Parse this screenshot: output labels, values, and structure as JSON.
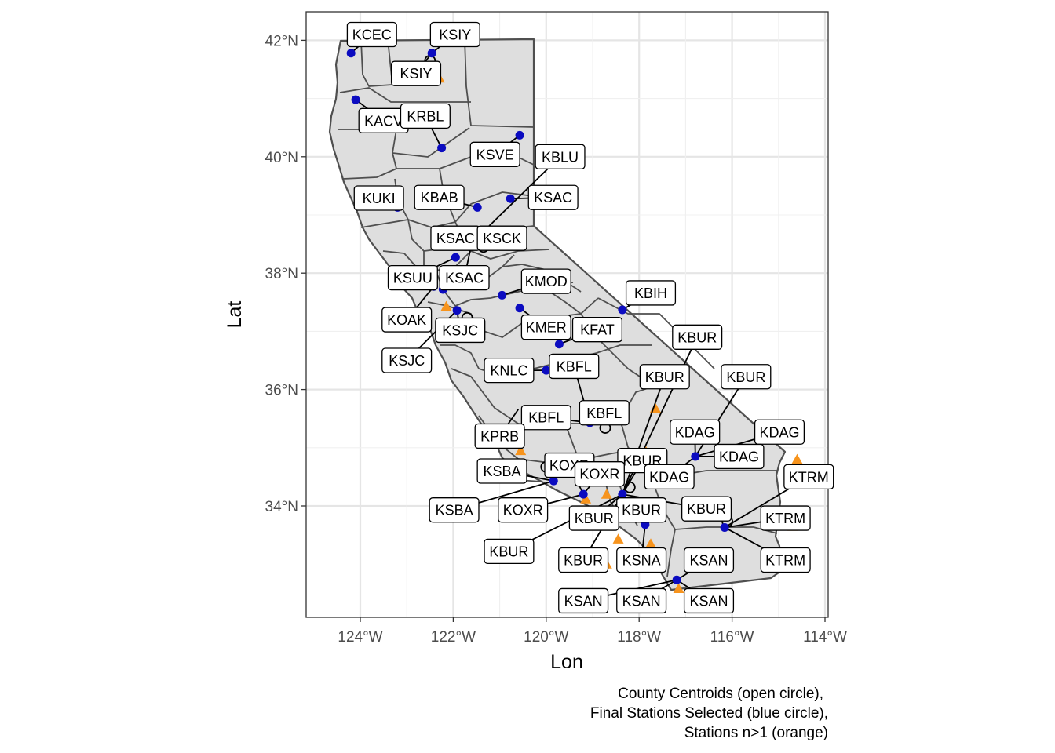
{
  "map": {
    "x_axis_title": "Lon",
    "y_axis_title": "Lat",
    "x_ticks": [
      {
        "value": -124,
        "label": "124°W"
      },
      {
        "value": -122,
        "label": "122°W"
      },
      {
        "value": -120,
        "label": "120°W"
      },
      {
        "value": -118,
        "label": "118°W"
      },
      {
        "value": -116,
        "label": "116°W"
      },
      {
        "value": -114,
        "label": "114°W"
      }
    ],
    "y_ticks": [
      {
        "value": 34,
        "label": "34°N"
      },
      {
        "value": 36,
        "label": "36°N"
      },
      {
        "value": 38,
        "label": "38°N"
      },
      {
        "value": 40,
        "label": "40°N"
      },
      {
        "value": 42,
        "label": "42°N"
      }
    ],
    "caption": [
      "County Centroids (open circle),",
      "Final Stations Selected (blue circle),",
      "Stations n>1 (orange)"
    ],
    "colors": {
      "land": "#dedede",
      "county_border": "#4f4f4f",
      "station": "#0b0bc0",
      "multi_station": "#f7941d",
      "grid": "#e5e5e5",
      "panel_border": "#333333"
    },
    "stations": [
      {
        "lon": -124.2,
        "lat": 41.78
      },
      {
        "lon": -122.46,
        "lat": 41.78
      },
      {
        "lon": -124.1,
        "lat": 40.98
      },
      {
        "lon": -122.25,
        "lat": 40.15
      },
      {
        "lon": -120.57,
        "lat": 40.37
      },
      {
        "lon": -123.2,
        "lat": 39.13
      },
      {
        "lon": -121.48,
        "lat": 39.13
      },
      {
        "lon": -120.77,
        "lat": 39.28
      },
      {
        "lon": -121.6,
        "lat": 38.52
      },
      {
        "lon": -121.95,
        "lat": 38.27
      },
      {
        "lon": -122.42,
        "lat": 37.77
      },
      {
        "lon": -122.22,
        "lat": 37.72
      },
      {
        "lon": -121.92,
        "lat": 37.36
      },
      {
        "lon": -120.95,
        "lat": 37.62
      },
      {
        "lon": -120.57,
        "lat": 37.4
      },
      {
        "lon": -118.36,
        "lat": 37.37
      },
      {
        "lon": -119.72,
        "lat": 36.78
      },
      {
        "lon": -120.0,
        "lat": 36.33
      },
      {
        "lon": -119.06,
        "lat": 35.43
      },
      {
        "lon": -116.79,
        "lat": 34.85
      },
      {
        "lon": -119.84,
        "lat": 34.43
      },
      {
        "lon": -119.2,
        "lat": 34.2
      },
      {
        "lon": -118.36,
        "lat": 34.2
      },
      {
        "lon": -116.16,
        "lat": 33.63
      },
      {
        "lon": -117.87,
        "lat": 33.68
      },
      {
        "lon": -117.19,
        "lat": 32.73
      }
    ],
    "centroids": [
      {
        "lon": -122.5,
        "lat": 41.65
      },
      {
        "lon": -121.35,
        "lat": 38.45
      },
      {
        "lon": -121.7,
        "lat": 37.23
      },
      {
        "lon": -118.73,
        "lat": 35.34
      },
      {
        "lon": -120.0,
        "lat": 34.67
      },
      {
        "lon": -118.2,
        "lat": 34.32
      },
      {
        "lon": -116.1,
        "lat": 33.73
      }
    ],
    "multi": [
      {
        "lon": -122.3,
        "lat": 41.35
      },
      {
        "lon": -121.55,
        "lat": 38.7
      },
      {
        "lon": -122.15,
        "lat": 37.43
      },
      {
        "lon": -117.65,
        "lat": 35.68
      },
      {
        "lon": -117.85,
        "lat": 34.93
      },
      {
        "lon": -120.55,
        "lat": 34.95
      },
      {
        "lon": -118.65,
        "lat": 34.55
      },
      {
        "lon": -118.7,
        "lat": 34.2
      },
      {
        "lon": -119.15,
        "lat": 34.12
      },
      {
        "lon": -118.45,
        "lat": 33.43
      },
      {
        "lon": -118.7,
        "lat": 33.0
      },
      {
        "lon": -117.75,
        "lat": 33.35
      },
      {
        "lon": -117.15,
        "lat": 32.58
      },
      {
        "lon": -114.6,
        "lat": 34.8
      },
      {
        "lon": -114.7,
        "lat": 33.65
      }
    ],
    "labels": [
      {
        "text": "KCEC",
        "lon": -123.75,
        "lat": 42.1,
        "slon": -124.2,
        "slat": 41.78
      },
      {
        "text": "KSIY",
        "lon": -121.96,
        "lat": 42.1,
        "slon": -122.46,
        "slat": 41.78
      },
      {
        "text": "KSIY",
        "lon": -122.8,
        "lat": 41.43,
        "slon": -122.46,
        "slat": 41.78
      },
      {
        "text": "KACV",
        "lon": -123.5,
        "lat": 40.62,
        "slon": -124.1,
        "slat": 40.98
      },
      {
        "text": "KRBL",
        "lon": -122.6,
        "lat": 40.7,
        "slon": -122.25,
        "slat": 40.15
      },
      {
        "text": "KSVE",
        "lon": -121.1,
        "lat": 40.04,
        "slon": -120.57,
        "slat": 40.37
      },
      {
        "text": "KBLU",
        "lon": -119.7,
        "lat": 40.0,
        "slon": -121.6,
        "slat": 38.52
      },
      {
        "text": "KUKI",
        "lon": -123.6,
        "lat": 39.29,
        "slon": -123.2,
        "slat": 39.13
      },
      {
        "text": "KBAB",
        "lon": -122.3,
        "lat": 39.3,
        "slon": -121.48,
        "slat": 39.13
      },
      {
        "text": "KSAC",
        "lon": -119.85,
        "lat": 39.3,
        "slon": -120.77,
        "slat": 39.28
      },
      {
        "text": "KSAC",
        "lon": -121.95,
        "lat": 38.6,
        "slon": -121.6,
        "slat": 38.52
      },
      {
        "text": "KSCK",
        "lon": -120.95,
        "lat": 38.6,
        "slon": -121.6,
        "slat": 38.52
      },
      {
        "text": "KSUU",
        "lon": -122.87,
        "lat": 37.92,
        "slon": -121.95,
        "slat": 38.27
      },
      {
        "text": "KSAC",
        "lon": -121.76,
        "lat": 37.92,
        "slon": -121.6,
        "slat": 38.52
      },
      {
        "text": "KMOD",
        "lon": -120.0,
        "lat": 37.86,
        "slon": -120.95,
        "slat": 37.62
      },
      {
        "text": "KBIH",
        "lon": -117.75,
        "lat": 37.66,
        "slon": -118.36,
        "slat": 37.37
      },
      {
        "text": "KOAK",
        "lon": -123.0,
        "lat": 37.2,
        "slon": -122.42,
        "slat": 37.77
      },
      {
        "text": "KSJC",
        "lon": -121.85,
        "lat": 37.02,
        "slon": -121.92,
        "slat": 37.36
      },
      {
        "text": "KMER",
        "lon": -120.0,
        "lat": 37.07,
        "slon": -120.57,
        "slat": 37.4
      },
      {
        "text": "KFAT",
        "lon": -118.9,
        "lat": 37.03,
        "slon": -119.72,
        "slat": 36.78
      },
      {
        "text": "KBUR",
        "lon": -116.75,
        "lat": 36.9,
        "slon": -118.36,
        "slat": 34.2
      },
      {
        "text": "KSJC",
        "lon": -123.0,
        "lat": 36.5,
        "slon": -121.92,
        "slat": 37.36
      },
      {
        "text": "KNLC",
        "lon": -120.8,
        "lat": 36.33,
        "slon": -120.0,
        "slat": 36.33
      },
      {
        "text": "KBFL",
        "lon": -119.4,
        "lat": 36.4,
        "slon": -119.06,
        "slat": 35.43
      },
      {
        "text": "KBUR",
        "lon": -117.45,
        "lat": 36.22,
        "slon": -118.36,
        "slat": 34.2
      },
      {
        "text": "KBUR",
        "lon": -115.7,
        "lat": 36.22,
        "slon": -116.79,
        "slat": 34.85
      },
      {
        "text": "KBFL",
        "lon": -118.75,
        "lat": 35.6,
        "slon": -119.06,
        "slat": 35.43
      },
      {
        "text": "KBFL",
        "lon": -120.0,
        "lat": 35.52,
        "slon": -119.06,
        "slat": 35.43
      },
      {
        "text": "KDAG",
        "lon": -116.8,
        "lat": 35.27,
        "slon": -116.79,
        "slat": 34.85
      },
      {
        "text": "KDAG",
        "lon": -114.98,
        "lat": 35.27,
        "slon": -116.79,
        "slat": 34.85
      },
      {
        "text": "KPRB",
        "lon": -121.0,
        "lat": 35.2,
        "slon": -120.6,
        "slat": 35.66
      },
      {
        "text": "KBUR",
        "lon": -117.93,
        "lat": 34.78,
        "slon": -118.36,
        "slat": 34.2
      },
      {
        "text": "KOXR",
        "lon": -119.5,
        "lat": 34.7,
        "slon": -119.2,
        "slat": 34.2
      },
      {
        "text": "KDAG",
        "lon": -115.85,
        "lat": 34.85,
        "slon": -116.79,
        "slat": 34.85
      },
      {
        "text": "KSBA",
        "lon": -120.95,
        "lat": 34.6,
        "slon": -119.84,
        "slat": 34.43
      },
      {
        "text": "KOXR",
        "lon": -118.85,
        "lat": 34.55,
        "slon": -119.2,
        "slat": 34.2
      },
      {
        "text": "KDAG",
        "lon": -117.35,
        "lat": 34.5,
        "slon": -116.79,
        "slat": 34.85
      },
      {
        "text": "KTRM",
        "lon": -114.35,
        "lat": 34.5,
        "slon": -116.16,
        "slat": 33.63
      },
      {
        "text": "KSBA",
        "lon": -121.98,
        "lat": 33.93,
        "slon": -119.84,
        "slat": 34.43
      },
      {
        "text": "KOXR",
        "lon": -120.5,
        "lat": 33.93,
        "slon": -119.2,
        "slat": 34.2
      },
      {
        "text": "KBUR",
        "lon": -116.55,
        "lat": 33.95,
        "slon": -118.36,
        "slat": 34.2
      },
      {
        "text": "KBUR",
        "lon": -117.95,
        "lat": 33.93,
        "slon": -118.36,
        "slat": 34.2
      },
      {
        "text": "KBUR",
        "lon": -118.97,
        "lat": 33.79,
        "slon": -118.36,
        "slat": 34.2
      },
      {
        "text": "KTRM",
        "lon": -114.85,
        "lat": 33.79,
        "slon": -116.16,
        "slat": 33.63
      },
      {
        "text": "KBUR",
        "lon": -120.8,
        "lat": 33.22,
        "slon": -118.36,
        "slat": 34.2
      },
      {
        "text": "KBUR",
        "lon": -119.2,
        "lat": 33.07,
        "slon": -118.36,
        "slat": 34.2
      },
      {
        "text": "KSNA",
        "lon": -117.95,
        "lat": 33.07,
        "slon": -117.87,
        "slat": 33.68
      },
      {
        "text": "KSAN",
        "lon": -116.5,
        "lat": 33.07,
        "slon": -117.19,
        "slat": 32.73
      },
      {
        "text": "KTRM",
        "lon": -114.85,
        "lat": 33.07,
        "slon": -116.16,
        "slat": 33.63
      },
      {
        "text": "KSAN",
        "lon": -119.2,
        "lat": 32.37,
        "slon": -117.19,
        "slat": 32.73
      },
      {
        "text": "KSAN",
        "lon": -117.95,
        "lat": 32.37,
        "slon": -117.19,
        "slat": 32.73
      },
      {
        "text": "KSAN",
        "lon": -116.5,
        "lat": 32.37,
        "slon": -117.19,
        "slat": 32.73
      }
    ]
  }
}
